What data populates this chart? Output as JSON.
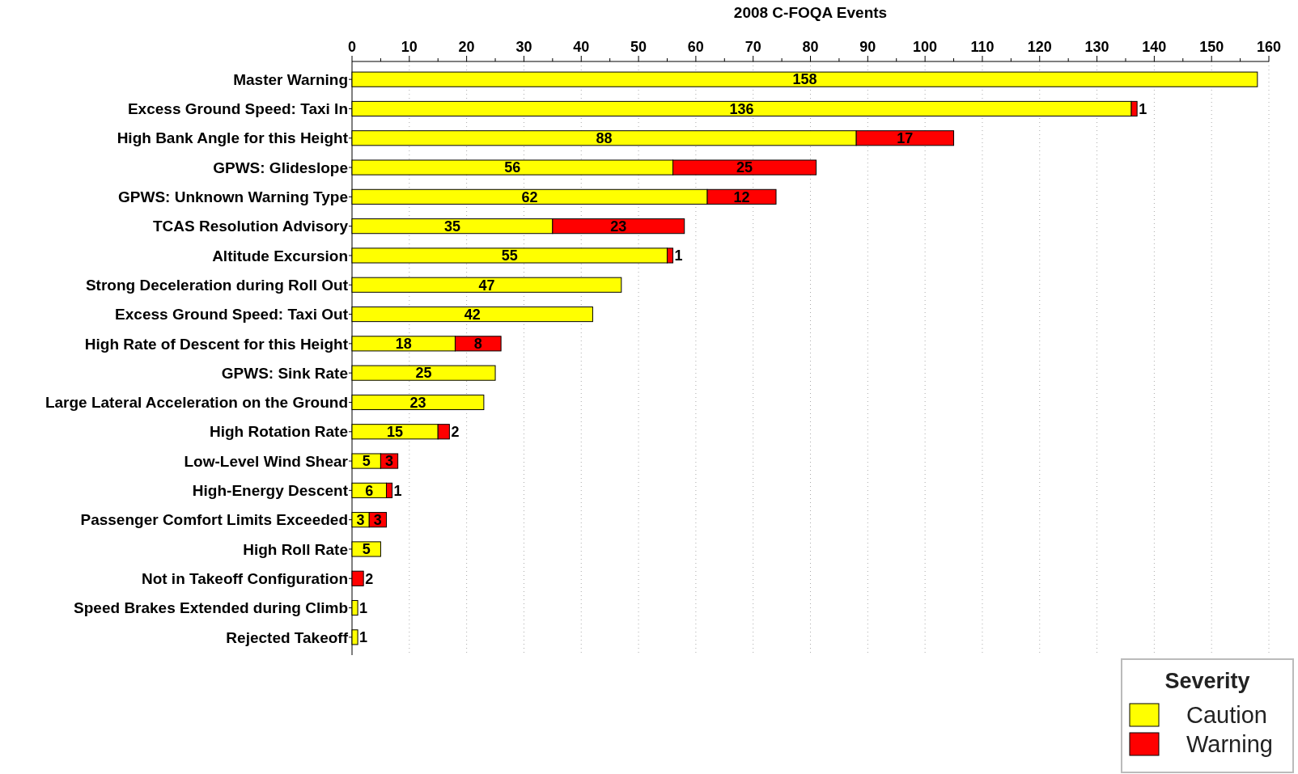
{
  "chart_data": {
    "type": "bar",
    "title": "2008 C-FOQA Events",
    "orientation": "horizontal",
    "stacked": true,
    "data_labels": true,
    "grid": "x",
    "legend": "bottom right",
    "legend_title": "Severity",
    "categories": [
      "Master Warning",
      "Excess Ground Speed: Taxi In",
      "High Bank Angle for this Height",
      "GPWS: Glideslope",
      "GPWS: Unknown Warning Type",
      "TCAS Resolution Advisory",
      "Altitude Excursion",
      "Strong Deceleration during Roll Out",
      "Excess Ground Speed: Taxi Out",
      "High Rate of Descent for this Height",
      "GPWS: Sink Rate",
      "Large Lateral Acceleration on the Ground",
      "High Rotation Rate",
      "Low-Level Wind Shear",
      "High-Energy Descent",
      "Passenger Comfort Limits Exceeded",
      "High Roll Rate",
      "Not in Takeoff Configuration",
      "Speed Brakes Extended during Climb",
      "Rejected Takeoff"
    ],
    "series": [
      {
        "name": "Caution",
        "color": "#ffff00",
        "values": [
          158,
          136,
          88,
          56,
          62,
          35,
          55,
          47,
          42,
          18,
          25,
          23,
          15,
          5,
          6,
          3,
          5,
          null,
          1,
          1
        ]
      },
      {
        "name": "Warning",
        "color": "#ff0000",
        "values": [
          null,
          1,
          17,
          25,
          12,
          23,
          1,
          null,
          null,
          8,
          null,
          null,
          2,
          3,
          1,
          3,
          null,
          2,
          null,
          null
        ]
      }
    ],
    "xlim": [
      0,
      160
    ],
    "xticks": [
      0,
      {
        "value": 5,
        "label": null
      },
      10,
      {
        "value": 15,
        "label": null
      },
      20,
      {
        "value": 25,
        "label": null
      },
      30,
      {
        "value": 35,
        "label": null
      },
      40,
      {
        "value": 45,
        "label": null
      },
      50,
      {
        "value": 55,
        "label": null
      },
      60,
      {
        "value": 65,
        "label": null
      },
      70,
      {
        "value": 75,
        "label": null
      },
      80,
      {
        "value": 85,
        "label": null
      },
      90,
      {
        "value": 95,
        "label": null
      },
      100,
      {
        "value": 105,
        "label": null
      },
      110,
      {
        "value": 115,
        "label": null
      },
      120,
      {
        "value": 125,
        "label": null
      },
      130,
      {
        "value": 135,
        "label": null
      },
      140,
      {
        "value": 145,
        "label": null
      },
      150,
      {
        "value": 155,
        "label": null
      },
      160
    ]
  }
}
